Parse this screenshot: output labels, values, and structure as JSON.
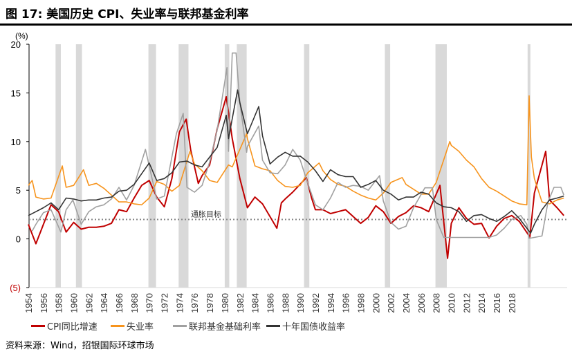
{
  "title": "图 17: 美国历史 CPI、失业率与联邦基金利率",
  "source": "资料来源：Wind，招银国际环球市场",
  "chart_data": {
    "type": "line",
    "title": "图 17: 美国历史 CPI、失业率与联邦基金利率",
    "ylabel": "(%)",
    "ylim": [
      -5,
      20
    ],
    "xlim": [
      1954,
      2025.3
    ],
    "yticks": [
      {
        "v": 20,
        "label": "20"
      },
      {
        "v": 15,
        "label": "15"
      },
      {
        "v": 10,
        "label": "10"
      },
      {
        "v": 5,
        "label": "5"
      },
      {
        "v": 0,
        "label": "0"
      },
      {
        "v": -5,
        "label": "(5)",
        "color": "#c00000"
      }
    ],
    "xticks": [
      "1954",
      "1956",
      "1958",
      "1960",
      "1962",
      "1964",
      "1966",
      "1968",
      "1970",
      "1972",
      "1974",
      "1976",
      "1978",
      "1980",
      "1982",
      "1984",
      "1986",
      "1988",
      "1990",
      "1992",
      "1994",
      "1996",
      "1998",
      "2000",
      "2002",
      "2004",
      "2006",
      "2008",
      "2010",
      "2012",
      "2014",
      "2016",
      "2018"
    ],
    "grid": false,
    "legend": "bottom",
    "recessions": [
      [
        1957.6,
        1958.3
      ],
      [
        1960.3,
        1961.1
      ],
      [
        1969.9,
        1970.9
      ],
      [
        1973.9,
        1975.2
      ],
      [
        1980.0,
        1980.6
      ],
      [
        1981.6,
        1982.9
      ],
      [
        1990.5,
        1991.2
      ],
      [
        2001.2,
        2001.9
      ],
      [
        2007.9,
        2009.4
      ],
      [
        2020.1,
        2020.4
      ]
    ],
    "recession_color": "#d9d9d9",
    "target": {
      "value": 2,
      "label": "通胀目标"
    },
    "series": [
      {
        "name": "CPI同比增速",
        "color": "#c00000",
        "points": [
          [
            1954,
            1.5
          ],
          [
            1955,
            -0.5
          ],
          [
            1956,
            1.5
          ],
          [
            1957,
            3.5
          ],
          [
            1958,
            2.8
          ],
          [
            1959,
            0.7
          ],
          [
            1960,
            1.7
          ],
          [
            1961,
            1.0
          ],
          [
            1962,
            1.2
          ],
          [
            1963,
            1.2
          ],
          [
            1964,
            1.3
          ],
          [
            1965,
            1.6
          ],
          [
            1966,
            3.0
          ],
          [
            1967,
            2.8
          ],
          [
            1968,
            4.2
          ],
          [
            1969,
            5.5
          ],
          [
            1970,
            6.0
          ],
          [
            1971,
            4.3
          ],
          [
            1972,
            3.3
          ],
          [
            1973,
            6.2
          ],
          [
            1974,
            11.0
          ],
          [
            1974.9,
            12.3
          ],
          [
            1975.5,
            9.1
          ],
          [
            1976.5,
            5.7
          ],
          [
            1977,
            6.5
          ],
          [
            1978,
            7.6
          ],
          [
            1979,
            11.3
          ],
          [
            1980.2,
            14.6
          ],
          [
            1981,
            10.3
          ],
          [
            1982,
            6.2
          ],
          [
            1983,
            3.2
          ],
          [
            1984,
            4.3
          ],
          [
            1985,
            3.6
          ],
          [
            1986.9,
            1.1
          ],
          [
            1987.5,
            3.7
          ],
          [
            1988,
            4.1
          ],
          [
            1989,
            4.8
          ],
          [
            1990.8,
            6.3
          ],
          [
            1991.5,
            4.2
          ],
          [
            1992,
            3.0
          ],
          [
            1993,
            3.0
          ],
          [
            1994,
            2.6
          ],
          [
            1995,
            2.8
          ],
          [
            1996,
            3.0
          ],
          [
            1997,
            2.3
          ],
          [
            1998,
            1.6
          ],
          [
            1999,
            2.2
          ],
          [
            2000,
            3.4
          ],
          [
            2001,
            2.8
          ],
          [
            2002,
            1.6
          ],
          [
            2003,
            2.3
          ],
          [
            2004,
            2.7
          ],
          [
            2005,
            3.4
          ],
          [
            2006,
            3.2
          ],
          [
            2007,
            2.8
          ],
          [
            2008.5,
            5.5
          ],
          [
            2009.5,
            -2.0
          ],
          [
            2010,
            1.6
          ],
          [
            2011,
            3.2
          ],
          [
            2012,
            2.1
          ],
          [
            2013,
            1.5
          ],
          [
            2014,
            1.6
          ],
          [
            2015,
            0.1
          ],
          [
            2016,
            1.3
          ],
          [
            2017,
            2.1
          ],
          [
            2018,
            2.4
          ],
          [
            2019,
            1.8
          ],
          [
            2020.4,
            0.2
          ],
          [
            2021,
            4.7
          ],
          [
            2022.5,
            9.0
          ],
          [
            2023,
            4.0
          ],
          [
            2024,
            3.2
          ],
          [
            2024.9,
            2.4
          ]
        ]
      },
      {
        "name": "失业率",
        "color": "#f7941d",
        "points": [
          [
            1954,
            5.5
          ],
          [
            1954.5,
            6.0
          ],
          [
            1955,
            4.3
          ],
          [
            1956,
            4.1
          ],
          [
            1957,
            4.2
          ],
          [
            1958.5,
            7.5
          ],
          [
            1959,
            5.3
          ],
          [
            1960,
            5.5
          ],
          [
            1961.3,
            7.1
          ],
          [
            1962,
            5.5
          ],
          [
            1963,
            5.7
          ],
          [
            1964,
            5.2
          ],
          [
            1965,
            4.5
          ],
          [
            1966,
            3.8
          ],
          [
            1967,
            3.8
          ],
          [
            1968,
            3.6
          ],
          [
            1969,
            3.5
          ],
          [
            1970,
            4.2
          ],
          [
            1971,
            5.9
          ],
          [
            1972,
            5.6
          ],
          [
            1973,
            4.9
          ],
          [
            1974,
            5.5
          ],
          [
            1975.4,
            9.0
          ],
          [
            1976,
            7.7
          ],
          [
            1977,
            7.0
          ],
          [
            1978,
            6.0
          ],
          [
            1979,
            5.8
          ],
          [
            1980.5,
            7.6
          ],
          [
            1981,
            7.4
          ],
          [
            1982.9,
            10.8
          ],
          [
            1983,
            10.3
          ],
          [
            1984,
            7.5
          ],
          [
            1985,
            7.2
          ],
          [
            1986,
            7.0
          ],
          [
            1987,
            6.0
          ],
          [
            1988,
            5.4
          ],
          [
            1989,
            5.3
          ],
          [
            1990,
            5.5
          ],
          [
            1991,
            6.8
          ],
          [
            1992.5,
            7.8
          ],
          [
            1993,
            7.0
          ],
          [
            1994,
            6.1
          ],
          [
            1995,
            5.6
          ],
          [
            1996,
            5.4
          ],
          [
            1997,
            4.9
          ],
          [
            1998,
            4.5
          ],
          [
            1999,
            4.2
          ],
          [
            2000,
            4.0
          ],
          [
            2001,
            4.7
          ],
          [
            2002,
            5.8
          ],
          [
            2003.5,
            6.3
          ],
          [
            2004,
            5.6
          ],
          [
            2005,
            5.1
          ],
          [
            2006,
            4.6
          ],
          [
            2007,
            4.6
          ],
          [
            2008,
            5.8
          ],
          [
            2009.8,
            10.0
          ],
          [
            2010,
            9.6
          ],
          [
            2011,
            9.0
          ],
          [
            2012,
            8.1
          ],
          [
            2013,
            7.4
          ],
          [
            2014,
            6.2
          ],
          [
            2015,
            5.3
          ],
          [
            2016,
            4.9
          ],
          [
            2017,
            4.4
          ],
          [
            2018,
            3.9
          ],
          [
            2019,
            3.6
          ],
          [
            2020.0,
            3.5
          ],
          [
            2020.3,
            14.7
          ],
          [
            2020.6,
            8.4
          ],
          [
            2021,
            6.2
          ],
          [
            2022,
            3.8
          ],
          [
            2023,
            3.6
          ],
          [
            2024,
            4.0
          ],
          [
            2024.9,
            4.2
          ]
        ]
      },
      {
        "name": "联邦基金基础利率",
        "color": "#a0a0a0",
        "points": [
          [
            1954.5,
            0.8
          ],
          [
            1955,
            1.5
          ],
          [
            1956,
            2.7
          ],
          [
            1957,
            3.0
          ],
          [
            1958.3,
            0.7
          ],
          [
            1959,
            3.0
          ],
          [
            1959.9,
            4.0
          ],
          [
            1961,
            1.5
          ],
          [
            1962,
            2.8
          ],
          [
            1963,
            3.3
          ],
          [
            1964,
            3.5
          ],
          [
            1965,
            4.1
          ],
          [
            1966,
            5.3
          ],
          [
            1967,
            4.0
          ],
          [
            1968,
            5.5
          ],
          [
            1969.5,
            9.2
          ],
          [
            1970,
            7.5
          ],
          [
            1971,
            4.1
          ],
          [
            1972,
            4.4
          ],
          [
            1973.6,
            10.8
          ],
          [
            1974.5,
            12.9
          ],
          [
            1975,
            5.3
          ],
          [
            1976,
            4.8
          ],
          [
            1977,
            5.5
          ],
          [
            1978,
            7.9
          ],
          [
            1979,
            11.2
          ],
          [
            1980.3,
            17.6
          ],
          [
            1980.5,
            9.0
          ],
          [
            1981,
            19.1
          ],
          [
            1981.5,
            19.1
          ],
          [
            1982,
            14.0
          ],
          [
            1982.9,
            8.9
          ],
          [
            1983,
            9.5
          ],
          [
            1984.5,
            11.6
          ],
          [
            1985,
            8.1
          ],
          [
            1986,
            6.8
          ],
          [
            1987,
            6.7
          ],
          [
            1988,
            7.6
          ],
          [
            1989,
            9.2
          ],
          [
            1990,
            8.1
          ],
          [
            1991,
            5.7
          ],
          [
            1992,
            3.5
          ],
          [
            1993,
            3.0
          ],
          [
            1994,
            4.2
          ],
          [
            1995,
            5.8
          ],
          [
            1996,
            5.3
          ],
          [
            1997,
            5.5
          ],
          [
            1998,
            5.4
          ],
          [
            1999,
            5.0
          ],
          [
            2000.5,
            6.5
          ],
          [
            2001,
            3.9
          ],
          [
            2002,
            1.7
          ],
          [
            2003,
            1.0
          ],
          [
            2004,
            1.3
          ],
          [
            2005,
            3.2
          ],
          [
            2006.5,
            5.25
          ],
          [
            2007.5,
            5.25
          ],
          [
            2008,
            2.0
          ],
          [
            2009,
            0.15
          ],
          [
            2015,
            0.15
          ],
          [
            2016,
            0.4
          ],
          [
            2017,
            1.1
          ],
          [
            2018,
            2.0
          ],
          [
            2019.2,
            2.4
          ],
          [
            2020,
            1.5
          ],
          [
            2020.3,
            0.05
          ],
          [
            2022,
            0.3
          ],
          [
            2022.8,
            3.8
          ],
          [
            2023.6,
            5.3
          ],
          [
            2024.5,
            5.3
          ],
          [
            2024.9,
            4.5
          ]
        ]
      },
      {
        "name": "十年国债收益率",
        "color": "#333333",
        "points": [
          [
            1954,
            2.4
          ],
          [
            1955,
            2.8
          ],
          [
            1956,
            3.2
          ],
          [
            1957,
            3.7
          ],
          [
            1958,
            3.0
          ],
          [
            1959,
            4.2
          ],
          [
            1960,
            4.1
          ],
          [
            1961,
            3.9
          ],
          [
            1962,
            4.0
          ],
          [
            1963,
            4.0
          ],
          [
            1964,
            4.2
          ],
          [
            1965,
            4.3
          ],
          [
            1966,
            4.9
          ],
          [
            1967,
            5.0
          ],
          [
            1968,
            5.6
          ],
          [
            1969,
            6.7
          ],
          [
            1970,
            7.8
          ],
          [
            1971,
            6.0
          ],
          [
            1972,
            6.2
          ],
          [
            1973,
            6.8
          ],
          [
            1974,
            7.9
          ],
          [
            1975,
            8.0
          ],
          [
            1976,
            7.6
          ],
          [
            1977,
            7.4
          ],
          [
            1978,
            8.4
          ],
          [
            1979,
            9.4
          ],
          [
            1980.2,
            12.7
          ],
          [
            1980.5,
            10.3
          ],
          [
            1981.7,
            15.3
          ],
          [
            1982,
            14.0
          ],
          [
            1983,
            10.8
          ],
          [
            1984.5,
            13.6
          ],
          [
            1985,
            10.6
          ],
          [
            1986,
            7.7
          ],
          [
            1987,
            8.4
          ],
          [
            1988,
            8.9
          ],
          [
            1989,
            8.5
          ],
          [
            1990,
            8.5
          ],
          [
            1991,
            7.9
          ],
          [
            1992,
            7.0
          ],
          [
            1993,
            5.9
          ],
          [
            1994,
            7.1
          ],
          [
            1995,
            6.6
          ],
          [
            1996,
            6.4
          ],
          [
            1997,
            6.4
          ],
          [
            1998,
            5.3
          ],
          [
            1999,
            5.6
          ],
          [
            2000,
            6.0
          ],
          [
            2001,
            5.0
          ],
          [
            2002,
            4.6
          ],
          [
            2003,
            4.0
          ],
          [
            2004,
            4.3
          ],
          [
            2005,
            4.3
          ],
          [
            2006,
            4.8
          ],
          [
            2007,
            4.6
          ],
          [
            2008,
            3.7
          ],
          [
            2009,
            3.3
          ],
          [
            2010,
            3.2
          ],
          [
            2011,
            2.8
          ],
          [
            2012,
            1.8
          ],
          [
            2013,
            2.4
          ],
          [
            2014,
            2.5
          ],
          [
            2015,
            2.1
          ],
          [
            2016,
            1.8
          ],
          [
            2017,
            2.3
          ],
          [
            2018,
            2.9
          ],
          [
            2019,
            2.1
          ],
          [
            2020.5,
            0.6
          ],
          [
            2021,
            1.5
          ],
          [
            2022,
            3.0
          ],
          [
            2023,
            4.0
          ],
          [
            2024,
            4.2
          ],
          [
            2024.9,
            4.4
          ]
        ]
      }
    ]
  }
}
